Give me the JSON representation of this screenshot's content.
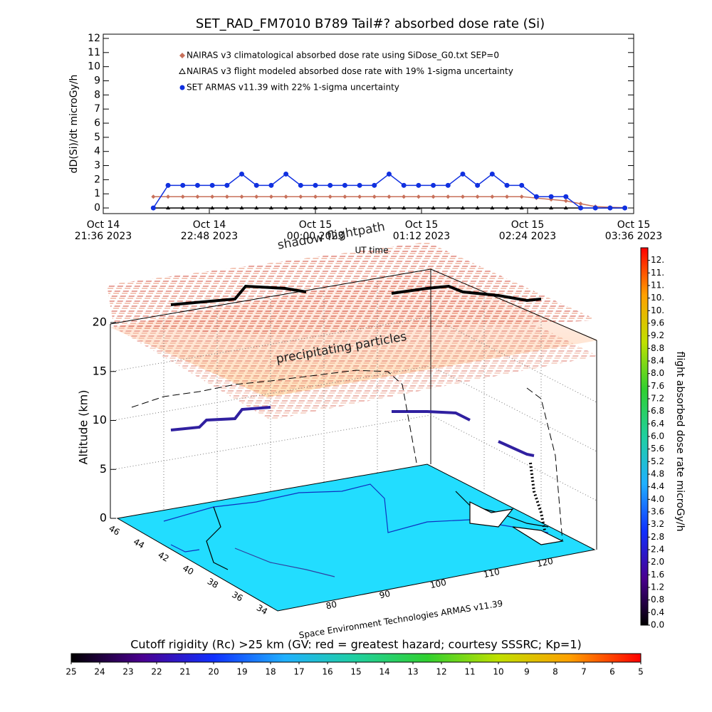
{
  "chart_data": [
    {
      "type": "line",
      "title": "SET_RAD_FM7010  B789 Tail#? absorbed dose rate (Si)",
      "y_label": "dD(Si)/dt microGy/h",
      "x_label": "UT time",
      "x": [
        "2023-10-14T22:10",
        "2023-10-14T22:20",
        "2023-10-14T22:30",
        "2023-10-14T22:40",
        "2023-10-14T22:50",
        "2023-10-14T23:00",
        "2023-10-14T23:10",
        "2023-10-14T23:20",
        "2023-10-14T23:30",
        "2023-10-14T23:40",
        "2023-10-14T23:50",
        "2023-10-15T00:00",
        "2023-10-15T00:10",
        "2023-10-15T00:20",
        "2023-10-15T00:30",
        "2023-10-15T00:40",
        "2023-10-15T00:50",
        "2023-10-15T01:00",
        "2023-10-15T01:10",
        "2023-10-15T01:20",
        "2023-10-15T01:30",
        "2023-10-15T01:40",
        "2023-10-15T01:50",
        "2023-10-15T02:00",
        "2023-10-15T02:10",
        "2023-10-15T02:20",
        "2023-10-15T02:30",
        "2023-10-15T02:40",
        "2023-10-15T02:50",
        "2023-10-15T03:00",
        "2023-10-15T03:10",
        "2023-10-15T03:20",
        "2023-10-15T03:30"
      ],
      "series": [
        {
          "name": "NAIRAS v3 climatological absorbed dose rate using SiDose_G0.txt SEP=0",
          "color": "#c8705a",
          "marker": "diamond",
          "values": [
            0.8,
            0.8,
            0.8,
            0.8,
            0.8,
            0.8,
            0.8,
            0.8,
            0.8,
            0.8,
            0.8,
            0.8,
            0.8,
            0.8,
            0.8,
            0.8,
            0.8,
            0.8,
            0.8,
            0.8,
            0.8,
            0.8,
            0.8,
            0.8,
            0.8,
            0.8,
            0.7,
            0.6,
            0.5,
            0.3,
            0.1,
            0.05,
            0.02
          ]
        },
        {
          "name": "NAIRAS v3 flight modeled absorbed dose rate with 19% 1-sigma uncertainty",
          "color": "#000000",
          "marker": "triangle",
          "values": [
            0,
            0,
            0,
            0,
            0,
            0,
            0,
            0,
            0,
            0,
            0,
            0,
            0,
            0,
            0,
            0,
            0,
            0,
            0,
            0,
            0,
            0,
            0,
            0,
            0,
            0,
            0,
            0,
            0,
            0,
            0,
            0,
            0
          ]
        },
        {
          "name": "SET ARMAS v11.39 with 22% 1-sigma uncertainty",
          "color": "#1030e0",
          "marker": "circle",
          "values": [
            0,
            1.6,
            1.6,
            1.6,
            1.6,
            1.6,
            2.4,
            1.6,
            1.6,
            2.4,
            1.6,
            1.6,
            1.6,
            1.6,
            1.6,
            1.6,
            2.4,
            1.6,
            1.6,
            1.6,
            1.6,
            2.4,
            1.6,
            2.4,
            1.6,
            1.6,
            0.8,
            0.8,
            0.8,
            0,
            0,
            0,
            0
          ]
        }
      ],
      "xlim": [
        "2023-10-14T21:36",
        "2023-10-15T03:36"
      ],
      "xticks": [
        {
          "value": "2023-10-14T21:36",
          "label": "Oct 14\n21:36 2023"
        },
        {
          "value": "2023-10-14T22:48",
          "label": "Oct 14\n22:48 2023"
        },
        {
          "value": "2023-10-15T00:00",
          "label": "Oct 15\n00:00 2023"
        },
        {
          "value": "2023-10-15T01:12",
          "label": "Oct 15\n01:12 2023"
        },
        {
          "value": "2023-10-15T02:24",
          "label": "Oct 15\n02:24 2023"
        },
        {
          "value": "2023-10-15T03:36",
          "label": "Oct 15\n03:36 2023"
        }
      ],
      "ylim": [
        -0.4,
        12.3
      ],
      "yticks": [
        0,
        1,
        2,
        3,
        4,
        5,
        6,
        7,
        8,
        9,
        10,
        11,
        12
      ]
    },
    {
      "type": "surface3d",
      "annotations": [
        "shadow flightpath",
        "precipitating particles"
      ],
      "z_label": "Altitude (km)",
      "zlim": [
        0,
        20
      ],
      "zticks": [
        0,
        5,
        10,
        15,
        20
      ],
      "latlim": [
        47,
        33
      ],
      "latticks": [
        46,
        44,
        42,
        40,
        38,
        36,
        34
      ],
      "lonlim": [
        75,
        125
      ],
      "lonticks": [
        80,
        90,
        100,
        110,
        120
      ],
      "credit": "Space Environment Technologies ARMAS v11.39"
    },
    {
      "type": "colorbar",
      "orientation": "vertical",
      "label": "flight absorbed dose rate microGy/h",
      "colormap": [
        "#000000",
        "#4a0090",
        "#1030ff",
        "#20b0ff",
        "#20d0a0",
        "#30d030",
        "#c0e000",
        "#ffa000",
        "#ff0000"
      ],
      "lim": [
        0,
        12.0
      ],
      "ticks": [
        {
          "value": 0,
          "label": "0.0"
        },
        {
          "value": 0.4,
          "label": "0.4"
        },
        {
          "value": 0.8,
          "label": "0.8"
        },
        {
          "value": 1.2,
          "label": "1.2"
        },
        {
          "value": 1.6,
          "label": "1.6"
        },
        {
          "value": 2.0,
          "label": "2.0"
        },
        {
          "value": 2.4,
          "label": "2.4"
        },
        {
          "value": 2.8,
          "label": "2.8"
        },
        {
          "value": 3.2,
          "label": "3.2"
        },
        {
          "value": 3.6,
          "label": "3.6"
        },
        {
          "value": 4.0,
          "label": "4.0"
        },
        {
          "value": 4.4,
          "label": "4.4"
        },
        {
          "value": 4.8,
          "label": "4.8"
        },
        {
          "value": 5.2,
          "label": "5.2"
        },
        {
          "value": 5.6,
          "label": "5.6"
        },
        {
          "value": 6.0,
          "label": "6.0"
        },
        {
          "value": 6.4,
          "label": "6.4"
        },
        {
          "value": 6.8,
          "label": "6.8"
        },
        {
          "value": 7.2,
          "label": "7.2"
        },
        {
          "value": 7.6,
          "label": "7.6"
        },
        {
          "value": 8.0,
          "label": "8.0"
        },
        {
          "value": 8.4,
          "label": "8.4"
        },
        {
          "value": 8.8,
          "label": "8.8"
        },
        {
          "value": 9.2,
          "label": "9.2"
        },
        {
          "value": 9.6,
          "label": "9.6"
        },
        {
          "value": 10.0,
          "label": "10."
        },
        {
          "value": 10.4,
          "label": "10."
        },
        {
          "value": 10.8,
          "label": "11."
        },
        {
          "value": 11.2,
          "label": "11."
        },
        {
          "value": 11.6,
          "label": "12."
        }
      ]
    },
    {
      "type": "colorbar",
      "orientation": "horizontal",
      "label": "Cutoff rigidity (Rc) >25 km (GV: red = greatest hazard; courtesy SSSRC; Kp=1)",
      "colormap": [
        "#000000",
        "#4a0090",
        "#1030ff",
        "#20b0ff",
        "#20d0a0",
        "#30d030",
        "#c0e000",
        "#ffa000",
        "#ff0000"
      ],
      "lim": [
        25,
        5
      ],
      "ticks": [
        25,
        24,
        23,
        22,
        21,
        20,
        19,
        18,
        17,
        16,
        15,
        14,
        13,
        12,
        11,
        10,
        9,
        8,
        7,
        6,
        5
      ]
    }
  ]
}
